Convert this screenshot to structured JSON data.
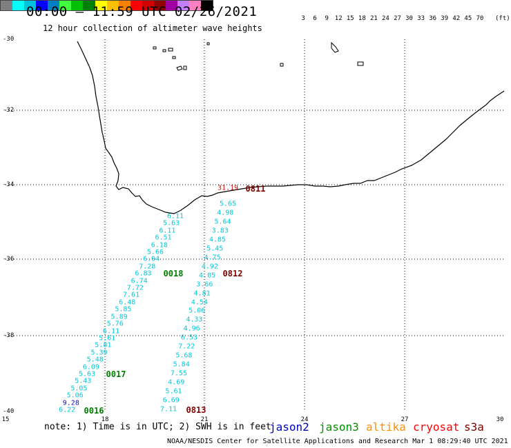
{
  "header": {
    "title": "00:00 – 11:59 UTC 02/26/2021",
    "subtitle": "12 hour collection of altimeter wave heights"
  },
  "colorbar": {
    "colors": [
      "#808080",
      "#00ffff",
      "#00c0e0",
      "#0000ff",
      "#0080c0",
      "#40ff40",
      "#00c000",
      "#008000",
      "#ffff00",
      "#ffc000",
      "#ff8000",
      "#ff0000",
      "#d00000",
      "#900000",
      "#a000a0",
      "#c080ff",
      "#ff80c0",
      "#000000"
    ],
    "labels": [
      "3",
      "6",
      "9",
      "12",
      "15",
      "18",
      "21",
      "24",
      "27",
      "30",
      "33",
      "36",
      "39",
      "42",
      "45",
      "70"
    ],
    "unit": "(ft)"
  },
  "axes": {
    "lat_labels": [
      "-30",
      "-32",
      "-34",
      "-36",
      "-38",
      "-40"
    ],
    "lon_labels": [
      "15",
      "18",
      "21",
      "24",
      "27",
      "30"
    ]
  },
  "tracks": [
    {
      "id": "0016",
      "color": "#008000",
      "values": [
        "6.22",
        "9.28",
        "5.06",
        "5.05",
        "5.43",
        "5.63",
        "6.09",
        "5.48",
        "5.39",
        "5.81",
        "5.61",
        "6.11",
        "5.76",
        "5.89",
        "5.85",
        "6.48",
        "7.61",
        "7.72",
        "6.74",
        "6.83",
        "7.28",
        "6.94",
        "5.66",
        "6.18",
        "6.51",
        "6.11",
        "5.63",
        "6.11"
      ]
    },
    {
      "id": "0017",
      "color": "#008000",
      "values": []
    },
    {
      "id": "0018",
      "color": "#008000",
      "values": []
    },
    {
      "id": "0813",
      "color": "#800000",
      "values": [
        "7.11",
        "6.69",
        "5.61",
        "4.69",
        "7.55",
        "5.84",
        "5.68",
        "7.22",
        "6.53",
        "4.96",
        "4.33",
        "5.06",
        "4.54",
        "4.81",
        "3.66",
        "4.05",
        "4.92",
        "4.75",
        "5.45",
        "4.85",
        "3.83",
        "5.64",
        "4.98",
        "5.65"
      ]
    },
    {
      "id": "0812",
      "color": "#800000",
      "values": []
    },
    {
      "id": "0811",
      "color": "#800000",
      "values": [
        "31.19"
      ]
    }
  ],
  "legend": {
    "note": "note: 1) Time is in UTC; 2) SWH is in feet",
    "satellites": [
      {
        "name": "jason2",
        "color": "#0000c0"
      },
      {
        "name": "jason3",
        "color": "#009000"
      },
      {
        "name": "altika",
        "color": "#ff9000"
      },
      {
        "name": "cryosat",
        "color": "#ff0000"
      },
      {
        "name": "s3a",
        "color": "#800000"
      }
    ]
  },
  "credit": "NOAA/NESDIS Center for Satellite Applications and Research   Mar  1 08:29:40 UTC 2021"
}
